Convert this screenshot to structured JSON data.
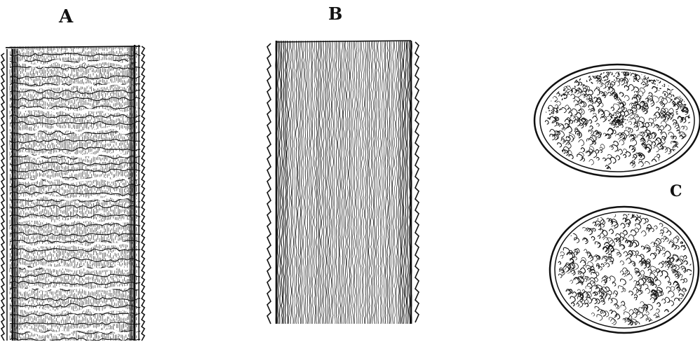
{
  "labels": {
    "a": "A",
    "b": "B",
    "c": "C"
  },
  "colors": {
    "ink": "#111111",
    "paper": "#ffffff"
  }
}
